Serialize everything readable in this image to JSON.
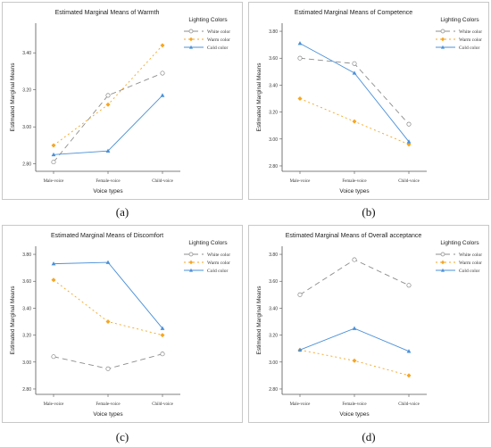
{
  "chart_data": [
    {
      "type": "line",
      "panel_label": "(a)",
      "title": "Estimated Marginal Means of Warmth",
      "xlabel": "Voice types",
      "ylabel": "Estimated Marginal Means",
      "legend_title": "Lighting Colors",
      "categories": [
        "Male-voice",
        "Female-voice",
        "Child-voice"
      ],
      "ylim": [
        2.76,
        3.56
      ],
      "yticks": [
        2.8,
        3.0,
        3.2,
        3.4
      ],
      "ytick_labels": [
        "2.80",
        "3.00",
        "3.20",
        "3.40"
      ],
      "series": [
        {
          "name": "White color",
          "color": "#8c8c8c",
          "dash": "6,4",
          "marker": "circle",
          "values": [
            2.81,
            3.17,
            3.29
          ]
        },
        {
          "name": "Warm color",
          "color": "#f5a623",
          "dash": "2,3",
          "marker": "diamond",
          "values": [
            2.9,
            3.12,
            3.44
          ]
        },
        {
          "name": "Cold color",
          "color": "#4a90d9",
          "dash": "",
          "marker": "triangle",
          "values": [
            2.85,
            2.87,
            3.17
          ]
        }
      ]
    },
    {
      "type": "line",
      "panel_label": "(b)",
      "title": "Estimated Marginal Means of Competence",
      "xlabel": "Voice types",
      "ylabel": "Estimated Marginal Means",
      "legend_title": "Lighting Colors",
      "categories": [
        "Male-voice",
        "Female-voice",
        "Child-voice"
      ],
      "ylim": [
        2.76,
        3.86
      ],
      "yticks": [
        2.8,
        3.0,
        3.2,
        3.4,
        3.6,
        3.8
      ],
      "ytick_labels": [
        "2.80",
        "3.00",
        "3.20",
        "3.40",
        "3.60",
        "3.80"
      ],
      "series": [
        {
          "name": "White color",
          "color": "#8c8c8c",
          "dash": "6,4",
          "marker": "circle",
          "values": [
            3.6,
            3.56,
            3.11
          ]
        },
        {
          "name": "Warm color",
          "color": "#f5a623",
          "dash": "2,3",
          "marker": "diamond",
          "values": [
            3.3,
            3.13,
            2.96
          ]
        },
        {
          "name": "Cold color",
          "color": "#4a90d9",
          "dash": "",
          "marker": "triangle",
          "values": [
            3.71,
            3.49,
            2.98
          ]
        }
      ]
    },
    {
      "type": "line",
      "panel_label": "(c)",
      "title": "Estimated Marginal Means of Discomfort",
      "xlabel": "Voice types",
      "ylabel": "Estimated Marginal Means",
      "legend_title": "Lighting Colors",
      "categories": [
        "Male-voice",
        "Female-voice",
        "Child-voice"
      ],
      "ylim": [
        2.76,
        3.86
      ],
      "yticks": [
        2.8,
        3.0,
        3.2,
        3.4,
        3.6,
        3.8
      ],
      "ytick_labels": [
        "2.80",
        "3.00",
        "3.20",
        "3.40",
        "3.60",
        "3.80"
      ],
      "series": [
        {
          "name": "White color",
          "color": "#8c8c8c",
          "dash": "6,4",
          "marker": "circle",
          "values": [
            3.04,
            2.95,
            3.06
          ]
        },
        {
          "name": "Warm color",
          "color": "#f5a623",
          "dash": "2,3",
          "marker": "diamond",
          "values": [
            3.61,
            3.3,
            3.2
          ]
        },
        {
          "name": "Cold color",
          "color": "#4a90d9",
          "dash": "",
          "marker": "triangle",
          "values": [
            3.73,
            3.74,
            3.25
          ]
        }
      ]
    },
    {
      "type": "line",
      "panel_label": "(d)",
      "title": "Estimated Marginal Means of Overall acceptance",
      "xlabel": "Voice types",
      "ylabel": "Estimated Marginal Means",
      "legend_title": "Lighting Colors",
      "categories": [
        "Male-voice",
        "Female-voice",
        "Child-voice"
      ],
      "ylim": [
        2.76,
        3.86
      ],
      "yticks": [
        2.8,
        3.0,
        3.2,
        3.4,
        3.6,
        3.8
      ],
      "ytick_labels": [
        "2.80",
        "3.00",
        "3.20",
        "3.40",
        "3.60",
        "3.80"
      ],
      "series": [
        {
          "name": "White color",
          "color": "#8c8c8c",
          "dash": "6,4",
          "marker": "circle",
          "values": [
            3.5,
            3.76,
            3.57
          ]
        },
        {
          "name": "Warm color",
          "color": "#f5a623",
          "dash": "2,3",
          "marker": "diamond",
          "values": [
            3.09,
            3.01,
            2.9
          ]
        },
        {
          "name": "Cold color",
          "color": "#4a90d9",
          "dash": "",
          "marker": "triangle",
          "values": [
            3.09,
            3.25,
            3.08
          ]
        }
      ]
    }
  ]
}
